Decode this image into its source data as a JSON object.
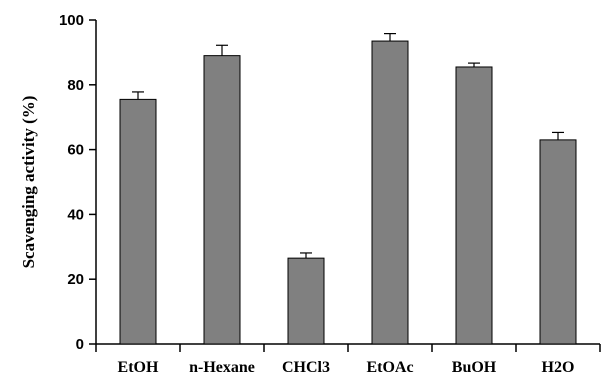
{
  "chart_data": {
    "type": "bar",
    "categories": [
      "EtOH",
      "n-Hexane",
      "CHCl3",
      "EtOAc",
      "BuOH",
      "H2O"
    ],
    "values": [
      75.5,
      89,
      26.5,
      93.5,
      85.5,
      63
    ],
    "errors": [
      2.3,
      3.2,
      1.6,
      2.3,
      1.2,
      2.3
    ],
    "title": "",
    "xlabel": "",
    "ylabel": "Scavenging activity (%)",
    "ylim": [
      0,
      100
    ],
    "yticks": [
      "0",
      "20",
      "40",
      "60",
      "80",
      "100"
    ],
    "grid": false,
    "bar_color": "#808080"
  }
}
